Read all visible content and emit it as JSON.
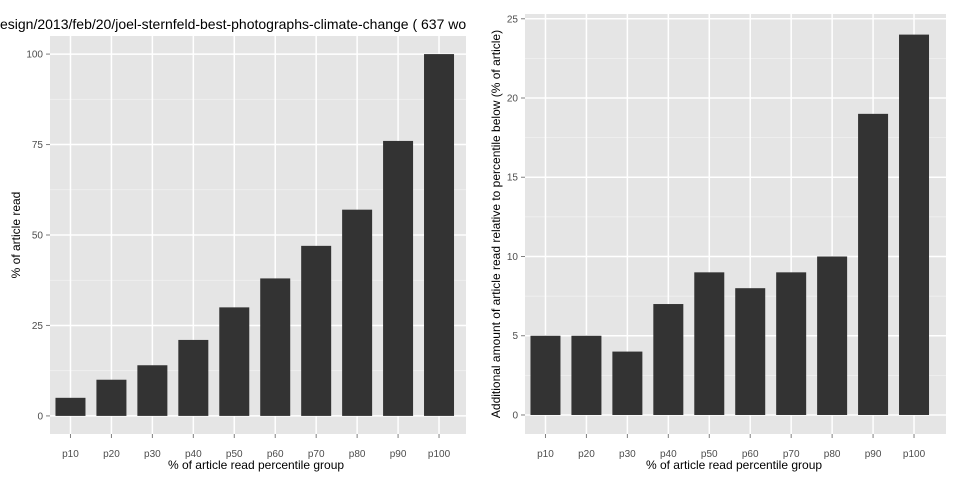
{
  "chart_data": [
    {
      "type": "bar",
      "title": "esign/2013/feb/20/joel-sternfeld-best-photographs-climate-change ( 637 wo",
      "xlabel": "% of article read percentile group",
      "ylabel": "% of article read",
      "categories": [
        "p10",
        "p20",
        "p30",
        "p40",
        "p50",
        "p60",
        "p70",
        "p80",
        "p90",
        "p100"
      ],
      "values": [
        5,
        10,
        14,
        21,
        30,
        38,
        47,
        57,
        76,
        100
      ],
      "ylim": [
        -5,
        105
      ],
      "yticks": [
        0,
        25,
        50,
        75,
        100
      ],
      "ytick_labels": [
        "0",
        "25",
        "50",
        "75",
        "100"
      ],
      "bar_color": "#333333",
      "panel_color": "#e5e5e5",
      "grid": true
    },
    {
      "type": "bar",
      "title": "",
      "xlabel": "% of article read percentile group",
      "ylabel": "Additional amount of article read relative to percentile below (% of article)",
      "categories": [
        "p10",
        "p20",
        "p30",
        "p40",
        "p50",
        "p60",
        "p70",
        "p80",
        "p90",
        "p100"
      ],
      "values": [
        5,
        5,
        4,
        7,
        9,
        8,
        9,
        10,
        19,
        24
      ],
      "ylim": [
        -1.2,
        25.3
      ],
      "yticks": [
        0,
        5,
        10,
        15,
        20,
        25
      ],
      "ytick_labels": [
        "0",
        "5",
        "10",
        "15",
        "20",
        "25"
      ],
      "bar_color": "#333333",
      "panel_color": "#e5e5e5",
      "grid": true
    }
  ]
}
